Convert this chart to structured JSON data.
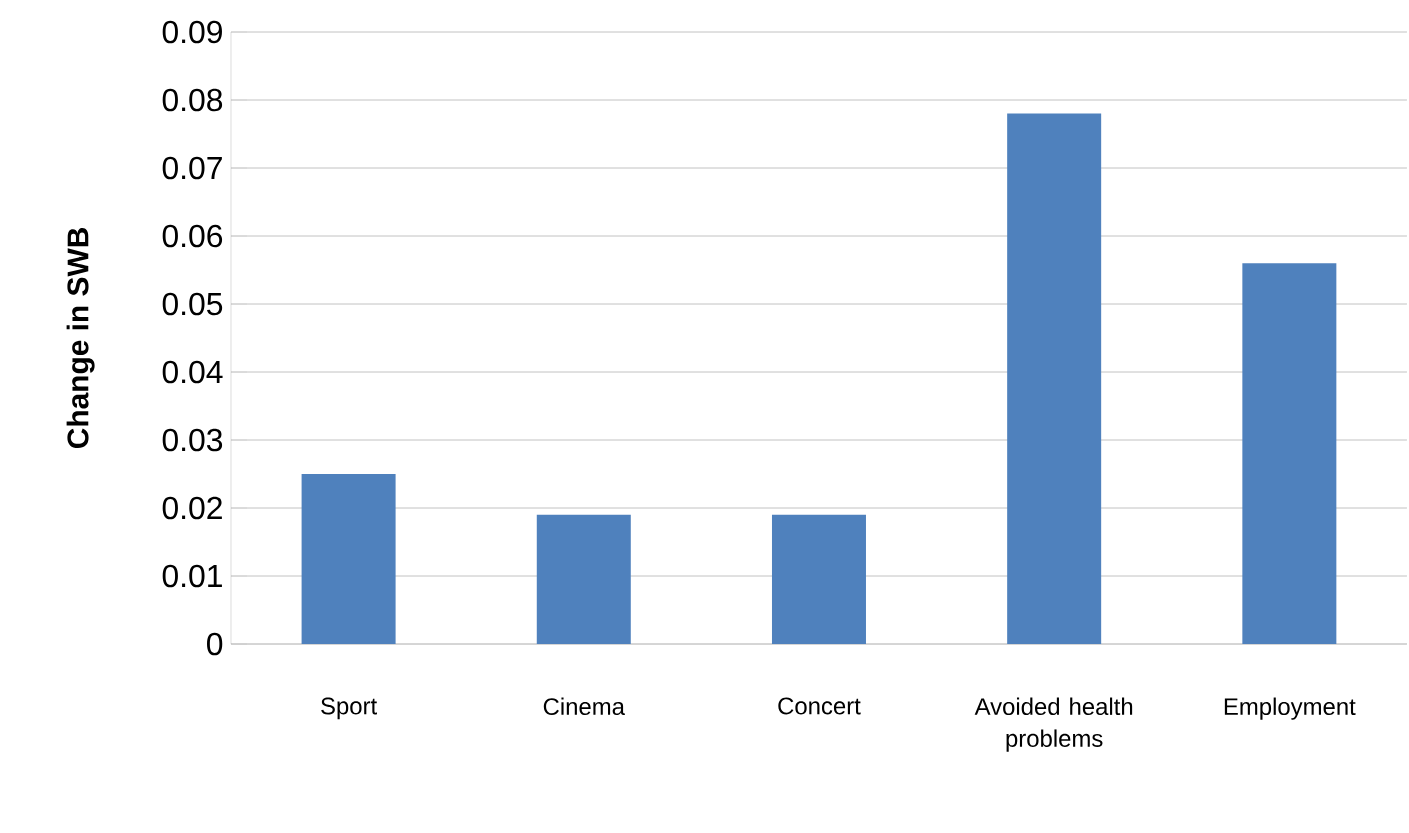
{
  "chart_data": {
    "type": "bar",
    "ylabel": "Change in SWB",
    "categories": [
      "Sport",
      "Cinema",
      "Concert",
      "Avoided health problems",
      "Employment"
    ],
    "values": [
      0.025,
      0.019,
      0.019,
      0.078,
      0.056
    ],
    "color": "#4f81bd",
    "ylim": [
      0,
      0.09
    ],
    "yticks": [
      0,
      0.01,
      0.02,
      0.03,
      0.04,
      0.05,
      0.06,
      0.07,
      0.08,
      0.09
    ],
    "grid": "y"
  }
}
